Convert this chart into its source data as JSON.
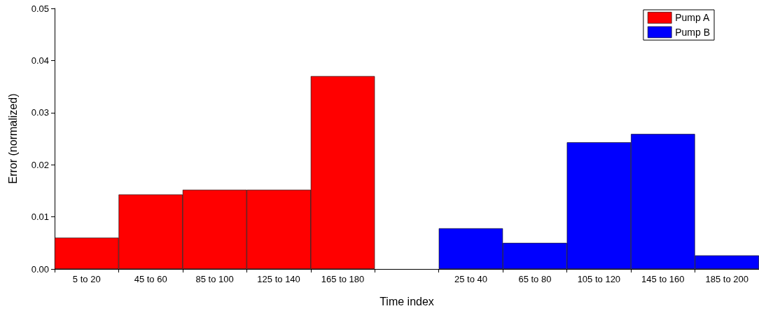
{
  "chart_data": {
    "type": "bar",
    "xlabel": "Time index",
    "ylabel": "Error (normalized)",
    "categories": [
      "5 to 20",
      "45 to 60",
      "85 to 100",
      "125 to 140",
      "165 to 180",
      null,
      "25 to 40",
      "65 to 80",
      "105 to 120",
      "145 to 160",
      "185 to 200"
    ],
    "series": [
      {
        "name": "Pump A",
        "color": "#ff0000",
        "values": [
          0.006,
          0.0143,
          0.0152,
          0.0152,
          0.037,
          null,
          null,
          null,
          null,
          null,
          null
        ]
      },
      {
        "name": "Pump B",
        "color": "#0000ff",
        "values": [
          null,
          null,
          null,
          null,
          null,
          null,
          0.0078,
          0.005,
          0.0243,
          0.0259,
          0.0026
        ]
      }
    ],
    "ylim": [
      0,
      0.05
    ],
    "yticks": [
      {
        "value": 0,
        "label": "0.00"
      },
      0.01,
      0.02,
      0.03,
      0.04,
      0.05
    ],
    "legend": "top right"
  }
}
